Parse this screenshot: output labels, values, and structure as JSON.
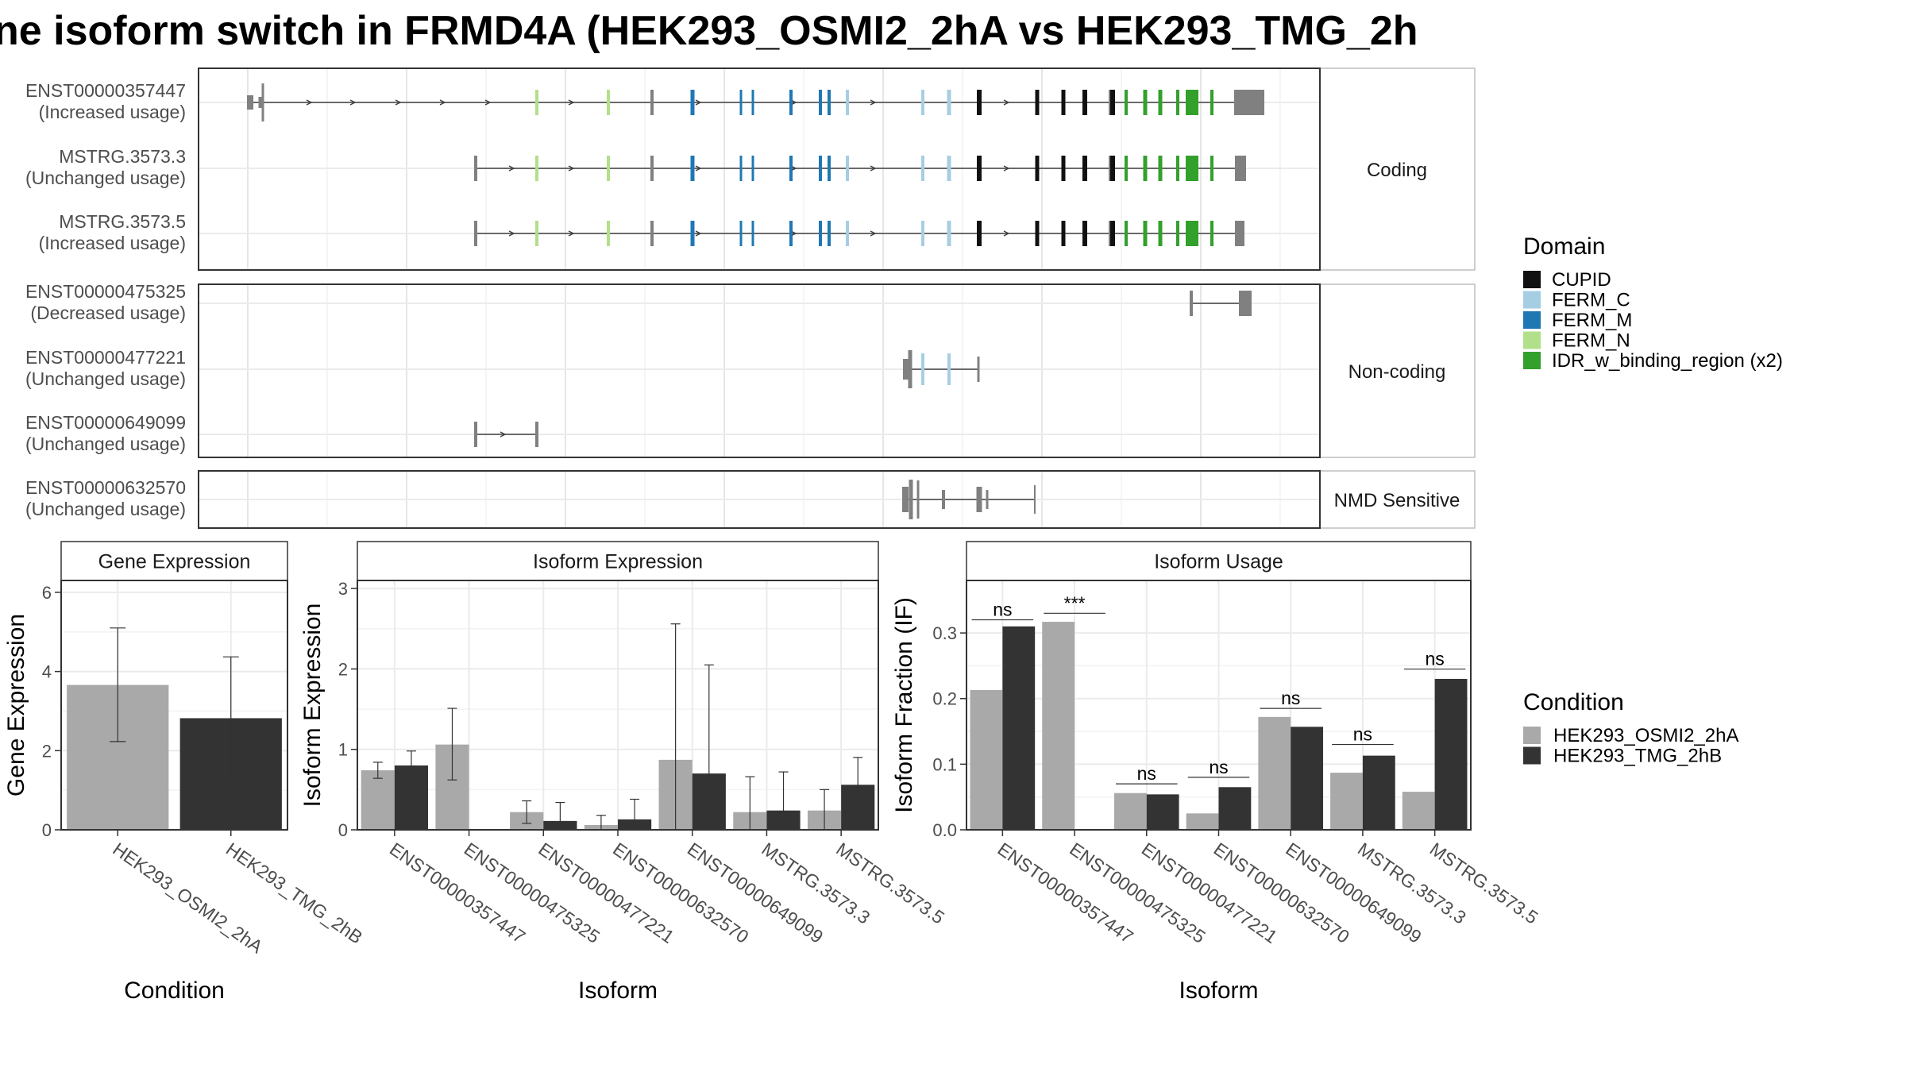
{
  "title": "ne isoform switch in FRMD4A (HEK293_OSMI2_2hA vs HEK293_TMG_2h",
  "colors": {
    "CUPID": "#111111",
    "FERM_C": "#a6cee3",
    "FERM_M": "#1f78b4",
    "FERM_N": "#b2df8a",
    "IDR_w_binding_region (x2)": "#33a02c",
    "transcript": "#808080",
    "cond1": "#a9a9a9",
    "cond2": "#333333"
  },
  "structure": {
    "facets": [
      "Coding",
      "Non-coding",
      "NMD Sensitive"
    ],
    "isoforms": [
      {
        "id": "ENST00000357447",
        "usage": "(Increased usage)",
        "facet": "Coding"
      },
      {
        "id": "MSTRG.3573.3",
        "usage": "(Unchanged usage)",
        "facet": "Coding"
      },
      {
        "id": "MSTRG.3573.5",
        "usage": "(Increased usage)",
        "facet": "Coding"
      },
      {
        "id": "ENST00000475325",
        "usage": "(Decreased usage)",
        "facet": "Non-coding"
      },
      {
        "id": "ENST00000477221",
        "usage": "(Unchanged usage)",
        "facet": "Non-coding"
      },
      {
        "id": "ENST00000649099",
        "usage": "(Unchanged usage)",
        "facet": "Non-coding"
      },
      {
        "id": "ENST00000632570",
        "usage": "(Unchanged usage)",
        "facet": "NMD Sensitive"
      }
    ],
    "legend_title": "Domain",
    "legend": [
      "CUPID",
      "FERM_C",
      "FERM_M",
      "FERM_N",
      "IDR_w_binding_region (x2)"
    ]
  },
  "chart_data": [
    {
      "type": "bar",
      "title": "Gene Expression",
      "xlabel": "Condition",
      "ylabel": "Gene Expression",
      "ylim": [
        0,
        6.3
      ],
      "yticks": [
        0,
        2,
        4,
        6
      ],
      "categories": [
        "HEK293_OSMI2_2hA",
        "HEK293_TMG_2hB"
      ],
      "values": [
        3.66,
        2.82
      ],
      "errors": [
        [
          2.23,
          5.1
        ],
        [
          1.28,
          4.37
        ]
      ]
    },
    {
      "type": "bar",
      "title": "Isoform Expression",
      "xlabel": "Isoform",
      "ylabel": "Isoform Expression",
      "ylim": [
        0,
        3.1
      ],
      "yticks": [
        0,
        1,
        2,
        3
      ],
      "categories": [
        "ENST00000357447",
        "ENST00000475325",
        "ENST00000477221",
        "ENST00000632570",
        "ENST00000649099",
        "MSTRG.3573.3",
        "MSTRG.3573.5"
      ],
      "series": [
        {
          "values": [
            0.74,
            1.06,
            0.22,
            0.06,
            0.87,
            0.22,
            0.24
          ],
          "errors": [
            [
              0.64,
              0.84
            ],
            [
              0.62,
              1.51
            ],
            [
              0.08,
              0.36
            ],
            [
              0.0,
              0.18
            ],
            [
              0.0,
              2.56
            ],
            [
              0.0,
              0.66
            ],
            [
              0.0,
              0.5
            ]
          ]
        },
        {
          "values": [
            0.8,
            0.0,
            0.11,
            0.13,
            0.7,
            0.24,
            0.56
          ],
          "errors": [
            [
              0.63,
              0.98
            ],
            [
              0.0,
              0.0
            ],
            [
              0.0,
              0.34
            ],
            [
              0.0,
              0.38
            ],
            [
              0.0,
              2.05
            ],
            [
              0.0,
              0.72
            ],
            [
              0.22,
              0.9
            ]
          ]
        }
      ]
    },
    {
      "type": "bar",
      "title": "Isoform Usage",
      "xlabel": "Isoform",
      "ylabel": "Isoform Fraction (IF)",
      "ylim": [
        0,
        0.38
      ],
      "yticks": [
        0.0,
        0.1,
        0.2,
        0.3
      ],
      "ytick_labels": [
        "0.0",
        "0.1",
        "0.2",
        "0.3"
      ],
      "categories": [
        "ENST00000357447",
        "ENST00000475325",
        "ENST00000477221",
        "ENST00000632570",
        "ENST00000649099",
        "MSTRG.3573.3",
        "MSTRG.3573.5"
      ],
      "series": [
        {
          "values": [
            0.213,
            0.317,
            0.056,
            0.025,
            0.172,
            0.087,
            0.058
          ]
        },
        {
          "values": [
            0.31,
            0.0,
            0.054,
            0.065,
            0.157,
            0.113,
            0.23
          ]
        }
      ],
      "significance": [
        "ns",
        "***",
        "ns",
        "ns",
        "ns",
        "ns",
        "ns"
      ],
      "sig_y": [
        0.32,
        0.33,
        0.07,
        0.08,
        0.185,
        0.13,
        0.245
      ]
    }
  ],
  "condition_legend": {
    "title": "Condition",
    "items": [
      "HEK293_OSMI2_2hA",
      "HEK293_TMG_2hB"
    ]
  }
}
